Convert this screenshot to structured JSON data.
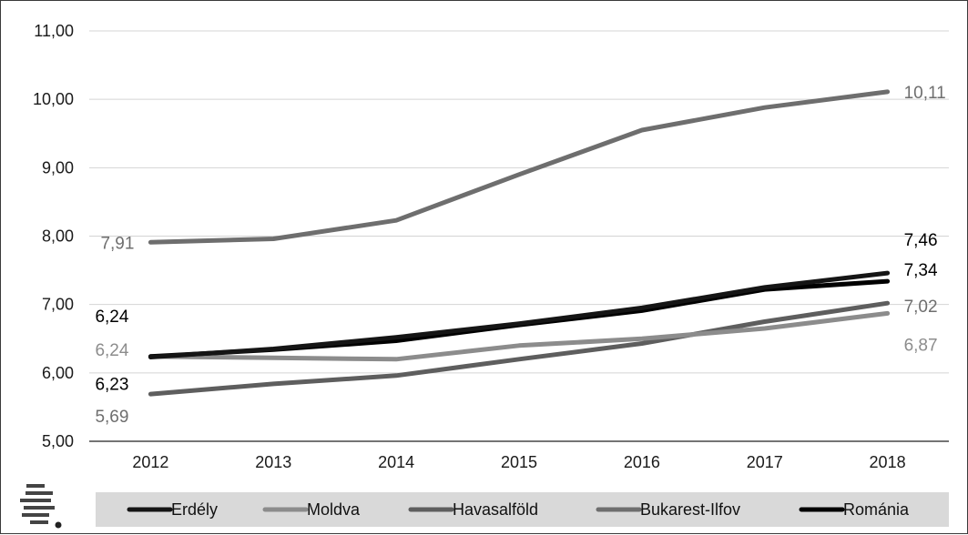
{
  "chart_data": {
    "type": "line",
    "categories": [
      "2012",
      "2013",
      "2014",
      "2015",
      "2016",
      "2017",
      "2018"
    ],
    "ylim": [
      5,
      11
    ],
    "yticks": [
      "5,00",
      "6,00",
      "7,00",
      "8,00",
      "9,00",
      "10,00",
      "11,00"
    ],
    "grid": true,
    "legend_position": "bottom",
    "series": [
      {
        "name": "Erdély",
        "color": "#151515",
        "values": [
          6.23,
          6.35,
          6.52,
          6.72,
          6.95,
          7.25,
          7.46
        ]
      },
      {
        "name": "Moldva",
        "color": "#8c8c8c",
        "values": [
          6.24,
          6.22,
          6.2,
          6.4,
          6.5,
          6.65,
          6.87
        ]
      },
      {
        "name": "Havasalföld",
        "color": "#5e5e5e",
        "values": [
          5.69,
          5.84,
          5.96,
          6.2,
          6.43,
          6.75,
          7.02
        ]
      },
      {
        "name": "Bukarest-Ilfov",
        "color": "#6e6e6e",
        "values": [
          7.91,
          7.96,
          8.23,
          8.9,
          9.55,
          9.88,
          10.11
        ]
      },
      {
        "name": "Románia",
        "color": "#000000",
        "values": [
          6.24,
          6.34,
          6.47,
          6.7,
          6.91,
          7.22,
          7.34
        ]
      }
    ],
    "data_labels": [
      {
        "series": "Bukarest-Ilfov",
        "index": 6,
        "text": "10,11"
      },
      {
        "series": "Bukarest-Ilfov",
        "index": 0,
        "text": "7,91"
      },
      {
        "series": "Erdély",
        "index": 6,
        "text": "7,46"
      },
      {
        "series": "Románia",
        "index": 6,
        "text": "7,34"
      },
      {
        "series": "Havasalföld",
        "index": 6,
        "text": "7,02"
      },
      {
        "series": "Moldva",
        "index": 6,
        "text": "6,87"
      },
      {
        "series": "Románia",
        "index": 0,
        "text": "6,24"
      },
      {
        "series": "Moldva",
        "index": 0,
        "text": "6,24"
      },
      {
        "series": "Erdély",
        "index": 0,
        "text": "6,23"
      },
      {
        "series": "Havasalföld",
        "index": 0,
        "text": "5,69"
      }
    ],
    "logo_icon": "striped-globe-logo-icon"
  }
}
